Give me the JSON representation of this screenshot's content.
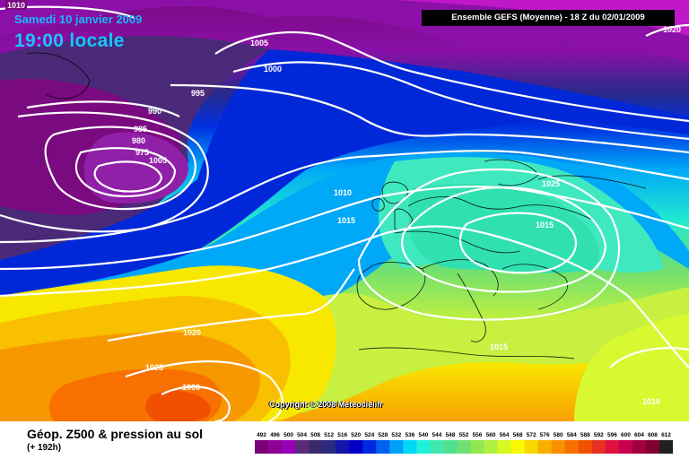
{
  "header": {
    "date": "Samedi 10 janvier 2009",
    "time": "19:00 locale",
    "model": "Ensemble GEFS (Moyenne)  - 18 Z du 02/01/2009"
  },
  "copyright": "Copyright © 2008 Meteociel.fr",
  "legend": {
    "title": "Géop. Z500 & pression au sol",
    "subtitle": "(+ 192h)",
    "scale_values": [
      492,
      496,
      500,
      504,
      508,
      512,
      516,
      520,
      524,
      528,
      532,
      536,
      540,
      544,
      548,
      552,
      556,
      560,
      564,
      568,
      572,
      576,
      580,
      584,
      588,
      592,
      596,
      600,
      604,
      608,
      612
    ],
    "scale_colors": [
      "#7a0078",
      "#8e0096",
      "#9800b8",
      "#5a2c78",
      "#3a2a6a",
      "#2a2a80",
      "#1414a8",
      "#0000c8",
      "#0028e0",
      "#0060f0",
      "#00a0f8",
      "#00d8f8",
      "#20f0d8",
      "#40e8b0",
      "#50e090",
      "#70e070",
      "#90e850",
      "#b0f040",
      "#d8f820",
      "#f8f800",
      "#f8d800",
      "#f8b000",
      "#f89000",
      "#f87000",
      "#f05000",
      "#e83020",
      "#e01040",
      "#c80050",
      "#a00040",
      "#800030",
      "#202020"
    ]
  },
  "isobar_labels": [
    {
      "text": "1010"
    },
    {
      "text": "1005"
    },
    {
      "text": "1000"
    },
    {
      "text": "995"
    },
    {
      "text": "990"
    },
    {
      "text": "985"
    },
    {
      "text": "980"
    },
    {
      "text": "975"
    },
    {
      "text": "1005"
    },
    {
      "text": "1010"
    },
    {
      "text": "1015"
    },
    {
      "text": "1020"
    },
    {
      "text": "1025"
    },
    {
      "text": "1000"
    },
    {
      "text": "1020"
    },
    {
      "text": "1025"
    },
    {
      "text": "1015"
    },
    {
      "text": "1015"
    },
    {
      "text": "1010"
    }
  ]
}
